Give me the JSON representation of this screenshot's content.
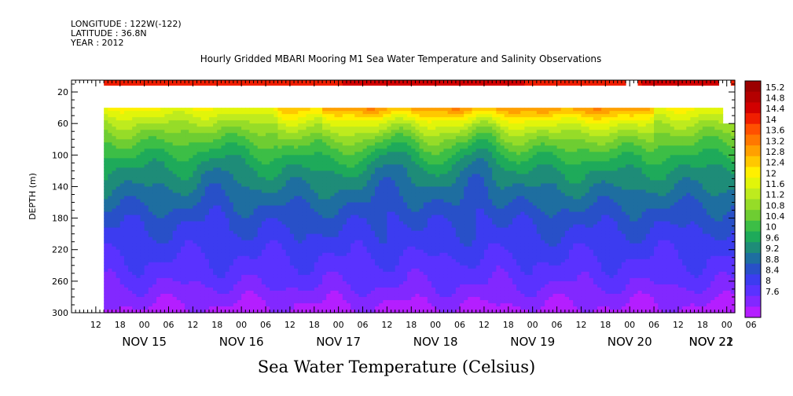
{
  "header": {
    "longitude": "LONGITUDE : 122W(-122)",
    "latitude": "LATITUDE : 36.8N",
    "year": "YEAR : 2012"
  },
  "chart_data": {
    "type": "heatmap",
    "title": "Hourly Gridded MBARI Mooring M1 Sea Water Temperature and Salinity Observations",
    "xlabel": "Sea Water Temperature (Celsius)",
    "ylabel": "DEPTH (m)",
    "variable": "Sea Water Temperature",
    "units": "Celsius",
    "x_hour_ticks": [
      "12",
      "18",
      "00",
      "06",
      "12",
      "18",
      "00",
      "06",
      "12",
      "18",
      "00",
      "06",
      "12",
      "18",
      "00",
      "06",
      "12",
      "18",
      "00",
      "06",
      "12",
      "18",
      "00",
      "06",
      "12",
      "18",
      "00",
      "06"
    ],
    "x_day_labels": [
      "NOV 15",
      "NOV 16",
      "NOV 17",
      "NOV 18",
      "NOV 19",
      "NOV 20",
      "NOV 21",
      "NOV 22"
    ],
    "x_range_hours_from_nov15_0000": [
      6,
      170
    ],
    "data_start_hour": 14,
    "y_ticks": [
      20,
      60,
      100,
      140,
      180,
      220,
      260,
      300
    ],
    "y_range": [
      5,
      300
    ],
    "colorbar_levels": [
      "15.2",
      "14.8",
      "14.4",
      "14",
      "13.6",
      "13.2",
      "12.8",
      "12.4",
      "12",
      "11.6",
      "11.2",
      "10.8",
      "10.4",
      "10",
      "9.6",
      "9.2",
      "8.8",
      "8.4",
      "8",
      "7.6"
    ],
    "colorbar_range": [
      7.6,
      15.6
    ],
    "surface_layer_depth": [
      5,
      12
    ],
    "surface_temperature": 14.4,
    "surface_gaps_hours": [
      [
        143,
        146
      ],
      [
        165.5,
        169
      ]
    ],
    "data_gap_depth": [
      12,
      40
    ],
    "profile": [
      {
        "depth": 40,
        "temp": 12.4
      },
      {
        "depth": 60,
        "temp": 11.6
      },
      {
        "depth": 80,
        "temp": 11.0
      },
      {
        "depth": 100,
        "temp": 10.5
      },
      {
        "depth": 120,
        "temp": 10.1
      },
      {
        "depth": 140,
        "temp": 9.8
      },
      {
        "depth": 160,
        "temp": 9.5
      },
      {
        "depth": 180,
        "temp": 9.2
      },
      {
        "depth": 200,
        "temp": 9.0
      },
      {
        "depth": 220,
        "temp": 8.8
      },
      {
        "depth": 240,
        "temp": 8.6
      },
      {
        "depth": 260,
        "temp": 8.4
      },
      {
        "depth": 280,
        "temp": 8.1
      },
      {
        "depth": 300,
        "temp": 7.8
      }
    ],
    "warm_episodes": [
      {
        "hour_range": [
          57,
          68
        ],
        "offset": 0.5
      },
      {
        "hour_range": [
          68,
          150
        ],
        "offset": 1.0
      }
    ],
    "cold_upwelling": [
      {
        "center_hour": 86,
        "width": 5,
        "strength": 1.0
      },
      {
        "center_hour": 107,
        "width": 4,
        "strength": 1.3
      },
      {
        "center_hour": 42,
        "width": 5,
        "strength": 0.5
      }
    ]
  },
  "colors": {
    "palette": [
      "#9B0000",
      "#B40000",
      "#D20000",
      "#F01E00",
      "#FF5000",
      "#FF7800",
      "#FFA000",
      "#FFC800",
      "#FFF000",
      "#E1F50A",
      "#BEEB1E",
      "#96DC28",
      "#6ECD32",
      "#3CBE46",
      "#1EAA5A",
      "#1E8C78",
      "#1E6EA0",
      "#2850C8",
      "#3C3CF0",
      "#5A32FF",
      "#8228FF",
      "#B41EFF"
    ]
  }
}
